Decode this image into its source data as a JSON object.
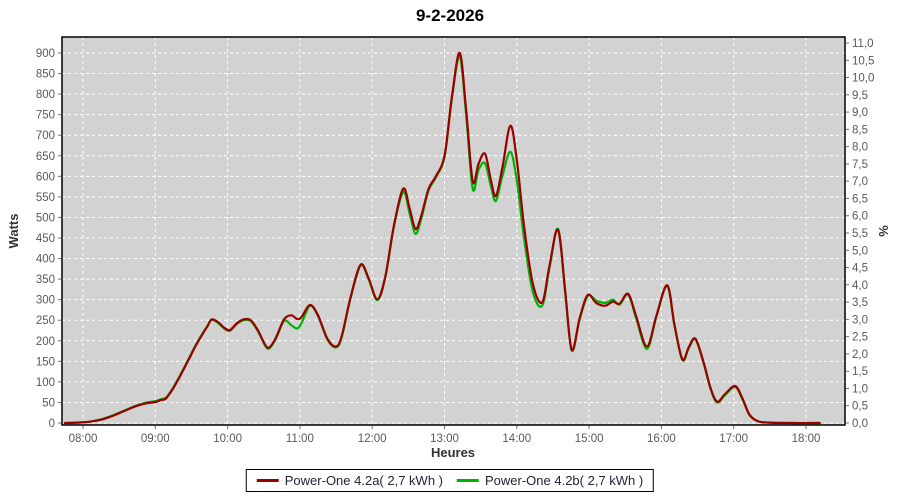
{
  "title": "9-2-2026",
  "legend": {
    "items": [
      {
        "label": "Power-One 4.2a( 2,7 kWh )",
        "color": "#990000"
      },
      {
        "label": "Power-One 4.2b( 2,7 kWh )",
        "color": "#00b300"
      }
    ],
    "position": "bottom"
  },
  "chart_data": {
    "type": "line",
    "title": "9-2-2026",
    "xlabel": "Heures",
    "ylabel_left": "Watts",
    "ylabel_right": "%",
    "grid": true,
    "legend_position": "bottom",
    "colors": {
      "plot_bg": "#d2d2d2",
      "grid": "#ffffff",
      "plot_border": "#000000",
      "tick": "#707070",
      "series_a": "#990000",
      "series_b": "#00b300"
    },
    "x_axis": {
      "label": "Heures",
      "range_hours": [
        7.71,
        18.54
      ],
      "tick_values": [
        8,
        9,
        10,
        11,
        12,
        13,
        14,
        15,
        16,
        17,
        18
      ],
      "tick_labels": [
        "08:00",
        "09:00",
        "10:00",
        "11:00",
        "12:00",
        "13:00",
        "14:00",
        "15:00",
        "16:00",
        "17:00",
        "18:00"
      ]
    },
    "left_axis": {
      "label": "Watts",
      "min": 0,
      "max": 900,
      "step": 50,
      "tick_values": [
        0,
        50,
        100,
        150,
        200,
        250,
        300,
        350,
        400,
        450,
        500,
        550,
        600,
        650,
        700,
        750,
        800,
        850,
        900
      ],
      "tick_labels": [
        "0",
        "50",
        "100",
        "150",
        "200",
        "250",
        "300",
        "350",
        "400",
        "450",
        "500",
        "550",
        "600",
        "650",
        "700",
        "750",
        "800",
        "850",
        "900"
      ]
    },
    "right_axis": {
      "label": "%",
      "min": 0,
      "max": 11,
      "step": 0.5,
      "tick_values": [
        0,
        0.5,
        1,
        1.5,
        2,
        2.5,
        3,
        3.5,
        4,
        4.5,
        5,
        5.5,
        6,
        6.5,
        7,
        7.5,
        8,
        8.5,
        9,
        9.5,
        10,
        10.5,
        11
      ],
      "tick_labels": [
        "0,0",
        "0,5",
        "1,0",
        "1,5",
        "2,0",
        "2,5",
        "3,0",
        "3,5",
        "4,0",
        "4,5",
        "5,0",
        "5,5",
        "6,0",
        "6,5",
        "7,0",
        "7,5",
        "8,0",
        "8,5",
        "9,0",
        "9,5",
        "10,0",
        "10,5",
        "11,0"
      ]
    },
    "x_unit": "hours_decimal",
    "x": [
      7.75,
      7.92,
      8.08,
      8.25,
      8.42,
      8.58,
      8.75,
      8.88,
      9.0,
      9.08,
      9.15,
      9.25,
      9.33,
      9.45,
      9.55,
      9.65,
      9.72,
      9.78,
      9.87,
      9.95,
      10.03,
      10.13,
      10.22,
      10.32,
      10.42,
      10.52,
      10.58,
      10.67,
      10.78,
      10.88,
      10.96,
      11.02,
      11.14,
      11.25,
      11.38,
      11.5,
      11.58,
      11.7,
      11.84,
      11.95,
      12.07,
      12.18,
      12.3,
      12.43,
      12.52,
      12.6,
      12.68,
      12.78,
      12.88,
      13.0,
      13.1,
      13.21,
      13.3,
      13.39,
      13.47,
      13.56,
      13.64,
      13.71,
      13.8,
      13.91,
      14.0,
      14.1,
      14.22,
      14.35,
      14.45,
      14.57,
      14.67,
      14.76,
      14.87,
      14.98,
      15.1,
      15.22,
      15.33,
      15.42,
      15.54,
      15.65,
      15.8,
      15.93,
      16.08,
      16.18,
      16.29,
      16.38,
      16.47,
      16.58,
      16.68,
      16.77,
      16.88,
      17.02,
      17.12,
      17.22,
      17.34,
      17.5,
      17.8,
      18.19
    ],
    "series": [
      {
        "id": "series-a",
        "name": "Power-One 4.2a( 2,7 kWh )",
        "color": "#990000",
        "values": [
          0,
          1,
          3,
          8,
          18,
          30,
          42,
          48,
          51,
          56,
          60,
          85,
          110,
          150,
          185,
          215,
          235,
          252,
          245,
          232,
          226,
          243,
          252,
          250,
          225,
          190,
          184,
          208,
          252,
          262,
          253,
          257,
          287,
          262,
          205,
          186,
          212,
          305,
          385,
          352,
          301,
          355,
          480,
          570,
          520,
          472,
          505,
          570,
          600,
          650,
          790,
          900,
          760,
          588,
          630,
          655,
          592,
          552,
          620,
          723,
          640,
          480,
          340,
          293,
          380,
          470,
          320,
          178,
          255,
          311,
          292,
          285,
          295,
          290,
          314,
          260,
          186,
          260,
          335,
          240,
          155,
          185,
          205,
          150,
          85,
          52,
          70,
          90,
          60,
          20,
          4,
          1,
          0,
          0
        ]
      },
      {
        "id": "series-b",
        "name": "Power-One 4.2b( 2,7 kWh )",
        "color": "#00b300",
        "values": [
          0,
          1,
          3,
          9,
          19,
          31,
          43,
          50,
          53,
          58,
          62,
          87,
          112,
          152,
          187,
          217,
          236,
          251,
          243,
          230,
          224,
          241,
          250,
          248,
          223,
          188,
          182,
          206,
          248,
          238,
          230,
          242,
          285,
          260,
          203,
          184,
          210,
          303,
          383,
          350,
          299,
          353,
          478,
          562,
          508,
          460,
          498,
          566,
          597,
          648,
          786,
          892,
          748,
          570,
          615,
          632,
          577,
          540,
          600,
          660,
          590,
          450,
          320,
          285,
          375,
          472,
          318,
          176,
          253,
          309,
          298,
          292,
          300,
          288,
          312,
          255,
          180,
          258,
          333,
          238,
          153,
          183,
          203,
          148,
          83,
          50,
          68,
          88,
          58,
          19,
          4,
          1,
          0,
          0
        ]
      }
    ]
  }
}
